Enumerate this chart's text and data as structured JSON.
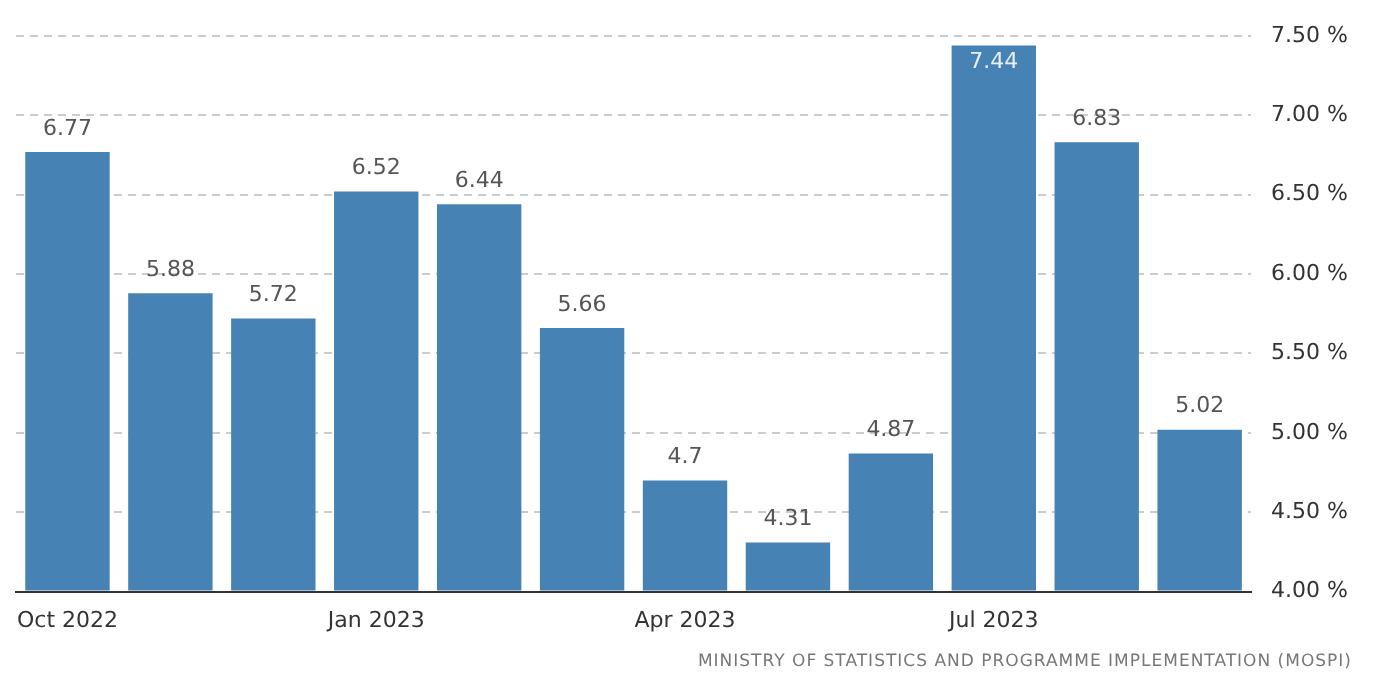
{
  "chart_data": {
    "type": "bar",
    "categories": [
      "Oct 2022",
      null,
      null,
      "Jan 2023",
      null,
      null,
      "Apr 2023",
      null,
      null,
      "Jul 2023",
      null,
      null
    ],
    "values": [
      6.77,
      5.88,
      5.72,
      6.52,
      6.44,
      5.66,
      4.7,
      4.31,
      4.87,
      7.44,
      6.83,
      5.02
    ],
    "color": "#4682b4",
    "ylim": [
      4,
      7.5
    ],
    "yticks": [
      {
        "value": 4,
        "label": "4.00 %"
      },
      {
        "value": 4.5,
        "label": "4.50 %"
      },
      {
        "value": 5,
        "label": "5.00 %"
      },
      {
        "value": 5.5,
        "label": "5.50 %"
      },
      {
        "value": 6,
        "label": "6.00 %"
      },
      {
        "value": 6.5,
        "label": "6.50 %"
      },
      {
        "value": 7,
        "label": "7.00 %"
      },
      {
        "value": 7.5,
        "label": "7.50 %"
      }
    ],
    "grid": "y",
    "data_labels": true,
    "annotations": [
      "MINISTRY OF STATISTICS AND PROGRAMME IMPLEMENTATION (MOSPI)"
    ]
  }
}
